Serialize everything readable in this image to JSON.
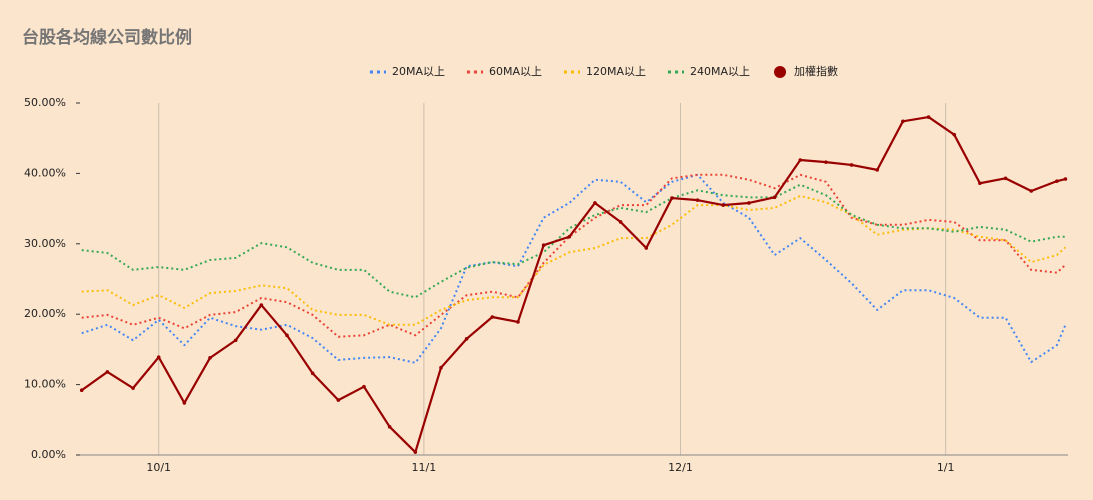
{
  "chart_data": {
    "type": "line",
    "title": "台股各均線公司數比例",
    "x": [
      -9,
      -6,
      -3,
      0,
      3,
      6,
      9,
      12,
      15,
      18,
      21,
      24,
      27,
      30,
      33,
      36,
      39,
      42,
      45,
      48,
      51,
      54,
      57,
      60,
      63,
      66,
      69,
      72,
      75,
      78,
      81,
      84,
      87,
      90,
      93,
      96,
      99,
      102,
      105,
      106
    ],
    "xlim": [
      -9.2,
      106.3
    ],
    "xticks": [
      {
        "value": 0,
        "label": "10/1"
      },
      {
        "value": 31,
        "label": "11/1"
      },
      {
        "value": 61,
        "label": "12/1"
      },
      {
        "value": 92,
        "label": "1/1"
      }
    ],
    "ylim": [
      0,
      50
    ],
    "yticks": [
      {
        "value": 0,
        "label": "0.00%"
      },
      {
        "value": 10,
        "label": "10.00%"
      },
      {
        "value": 20,
        "label": "20.00%"
      },
      {
        "value": 30,
        "label": "30.00%"
      },
      {
        "value": 40,
        "label": "40.00%"
      },
      {
        "value": 50,
        "label": "50.00%"
      }
    ],
    "grid": "x",
    "legend": "top",
    "series": [
      {
        "name": "20MA以上",
        "color": "#4285f4",
        "line_style": "dotted",
        "values": [
          17.3,
          18.5,
          16.3,
          19.2,
          15.6,
          19.5,
          18.3,
          17.8,
          18.5,
          16.6,
          13.5,
          13.8,
          13.9,
          13.1,
          18.0,
          26.8,
          27.4,
          26.8,
          33.7,
          35.8,
          39.1,
          38.8,
          35.9,
          38.8,
          39.8,
          35.8,
          33.7,
          28.4,
          30.8,
          27.7,
          24.4,
          20.6,
          23.4,
          23.4,
          22.3,
          19.5,
          19.5,
          13.2,
          15.6,
          18.5
        ]
      },
      {
        "name": "60MA以上",
        "color": "#ea4335",
        "line_style": "dotted",
        "values": [
          19.5,
          19.9,
          18.5,
          19.5,
          18.0,
          19.9,
          20.3,
          22.3,
          21.7,
          19.9,
          16.8,
          17.0,
          18.5,
          17.0,
          19.9,
          22.7,
          23.2,
          22.4,
          27.3,
          31.0,
          33.7,
          35.5,
          35.5,
          39.3,
          39.8,
          39.8,
          39.1,
          37.9,
          39.8,
          38.8,
          33.7,
          32.7,
          32.7,
          33.4,
          33.1,
          30.5,
          30.5,
          26.3,
          25.9,
          27.0
        ]
      },
      {
        "name": "120MA以上",
        "color": "#fbbc04",
        "line_style": "dotted",
        "values": [
          23.2,
          23.4,
          21.3,
          22.7,
          20.9,
          23.0,
          23.3,
          24.1,
          23.7,
          20.6,
          19.9,
          19.9,
          18.5,
          18.5,
          20.6,
          22.0,
          22.4,
          22.4,
          27.0,
          28.8,
          29.4,
          30.8,
          30.8,
          32.7,
          35.5,
          35.5,
          34.8,
          35.1,
          36.8,
          35.9,
          34.1,
          31.3,
          32.0,
          32.2,
          32.0,
          31.0,
          30.5,
          27.4,
          28.4,
          29.5
        ]
      },
      {
        "name": "240MA以上",
        "color": "#34a853",
        "line_style": "dotted",
        "values": [
          29.1,
          28.7,
          26.3,
          26.7,
          26.3,
          27.7,
          28.0,
          30.1,
          29.5,
          27.3,
          26.3,
          26.3,
          23.2,
          22.4,
          24.6,
          26.6,
          27.4,
          27.1,
          28.8,
          32.2,
          34.1,
          35.1,
          34.5,
          36.5,
          37.6,
          36.9,
          36.6,
          36.6,
          38.4,
          36.9,
          34.1,
          32.7,
          32.2,
          32.2,
          31.7,
          32.4,
          32.0,
          30.3,
          31.0,
          31.0
        ]
      },
      {
        "name": "加權指數",
        "color": "#990000",
        "line_style": "solid",
        "markers": true,
        "values": [
          9.2,
          11.8,
          9.5,
          13.9,
          7.4,
          13.8,
          16.3,
          21.3,
          17.0,
          11.6,
          7.8,
          9.7,
          4.0,
          0.4,
          12.4,
          16.5,
          19.6,
          18.9,
          29.8,
          31.0,
          35.8,
          33.1,
          29.4,
          36.5,
          36.2,
          35.5,
          35.8,
          36.6,
          41.9,
          41.6,
          41.2,
          40.5,
          47.4,
          48.0,
          45.5,
          38.6,
          39.3,
          37.5,
          38.9,
          39.2
        ]
      }
    ]
  }
}
